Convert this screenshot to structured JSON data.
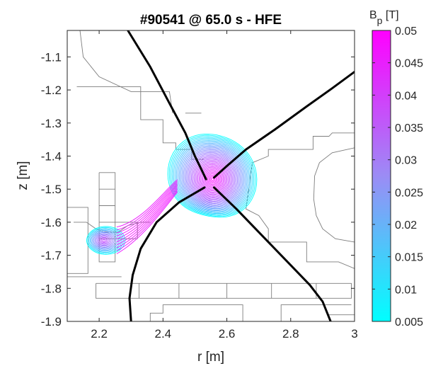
{
  "chart_data": {
    "type": "contour",
    "title": "#90541 @ 65.0 s - HFE",
    "xlabel": "r [m]",
    "ylabel": "z [m]",
    "xlim": [
      2.1,
      3.0
    ],
    "ylim": [
      -1.9,
      -1.02
    ],
    "x_ticks": [
      2.2,
      2.4,
      2.6,
      2.8,
      3
    ],
    "x_tick_labels": [
      "2.2",
      "2.4",
      "2.6",
      "2.8",
      "3"
    ],
    "y_ticks": [
      -1.1,
      -1.2,
      -1.3,
      -1.4,
      -1.5,
      -1.6,
      -1.7,
      -1.8,
      -1.9
    ],
    "y_tick_labels": [
      "-1.1",
      "-1.2",
      "-1.3",
      "-1.4",
      "-1.5",
      "-1.6",
      "-1.7",
      "-1.8",
      "-1.9"
    ],
    "colorbar": {
      "label_main": "B",
      "label_sub": "p",
      "label_unit": " [T]",
      "min": 0.005,
      "max": 0.05,
      "ticks": [
        0.05,
        0.045,
        0.04,
        0.035,
        0.03,
        0.025,
        0.02,
        0.015,
        0.01,
        0.005
      ],
      "tick_labels": [
        "0.05",
        "0.045",
        "0.04",
        "0.035",
        "0.03",
        "0.025",
        "0.02",
        "0.015",
        "0.01",
        "0.005"
      ],
      "color_low": "#00ffff",
      "color_high": "#ff00ff"
    },
    "null_point": [
      2.545,
      -1.478
    ],
    "main_region": {
      "center": [
        2.555,
        -1.47
      ],
      "rx": 0.125,
      "ry": 0.14
    },
    "secondary_region": {
      "center": [
        2.215,
        -1.655
      ],
      "rx": 0.06,
      "ry": 0.042
    },
    "separatrix": [
      {
        "name": "upper-left leg",
        "x": [
          2.29,
          2.36,
          2.42,
          2.47,
          2.5,
          2.52,
          2.535
        ],
        "y": [
          -1.02,
          -1.13,
          -1.24,
          -1.33,
          -1.4,
          -1.44,
          -1.47
        ]
      },
      {
        "name": "upper-right leg",
        "x": [
          2.56,
          2.6,
          2.66,
          2.75,
          2.85,
          2.93,
          3.0
        ],
        "y": [
          -1.465,
          -1.43,
          -1.38,
          -1.32,
          -1.25,
          -1.195,
          -1.145
        ]
      },
      {
        "name": "lower-left leg",
        "x": [
          2.53,
          2.45,
          2.38,
          2.33,
          2.305,
          2.295,
          2.3
        ],
        "y": [
          -1.495,
          -1.54,
          -1.6,
          -1.68,
          -1.76,
          -1.83,
          -1.9
        ]
      },
      {
        "name": "lower-right leg",
        "x": [
          2.56,
          2.63,
          2.71,
          2.79,
          2.86,
          2.9,
          2.925
        ],
        "y": [
          -1.495,
          -1.56,
          -1.64,
          -1.72,
          -1.79,
          -1.84,
          -1.9
        ]
      }
    ],
    "wall_outlines": [
      {
        "x": [
          2.1,
          2.14,
          2.15,
          2.2,
          2.3,
          2.42,
          2.43
        ],
        "y": [
          -1.02,
          -1.02,
          -1.1,
          -1.16,
          -1.205,
          -1.205,
          -1.27
        ]
      },
      {
        "x": [
          2.47,
          2.52
        ],
        "y": [
          -1.27,
          -1.27
        ]
      },
      {
        "x": [
          2.13,
          2.33,
          2.33,
          2.4,
          2.4,
          2.44,
          2.44,
          2.49,
          2.49,
          2.53
        ],
        "y": [
          -1.19,
          -1.19,
          -1.29,
          -1.29,
          -1.36,
          -1.36,
          -1.38,
          -1.38,
          -1.41,
          -1.41
        ]
      },
      {
        "x": [
          2.1,
          2.165,
          2.165,
          2.1
        ],
        "y": [
          -1.555,
          -1.555,
          -1.755,
          -1.755
        ]
      },
      {
        "x": [
          2.1,
          2.27
        ],
        "y": [
          -1.765,
          -1.765
        ]
      },
      {
        "x": [
          2.12,
          2.16,
          2.19,
          2.22,
          2.26,
          2.29,
          2.33,
          2.36
        ],
        "y": [
          -1.6,
          -1.6,
          -1.62,
          -1.63,
          -1.63,
          -1.61,
          -1.6,
          -1.6
        ]
      },
      {
        "x": [
          2.2,
          2.25,
          2.25,
          2.2,
          2.2
        ],
        "y": [
          -1.45,
          -1.45,
          -1.72,
          -1.72,
          -1.45
        ]
      },
      {
        "x": [
          2.2,
          2.25
        ],
        "y": [
          -1.5,
          -1.5
        ]
      },
      {
        "x": [
          2.2,
          2.25
        ],
        "y": [
          -1.55,
          -1.55
        ]
      },
      {
        "x": [
          2.2,
          2.25
        ],
        "y": [
          -1.6,
          -1.6
        ]
      },
      {
        "x": [
          2.2,
          2.25
        ],
        "y": [
          -1.65,
          -1.65
        ]
      },
      {
        "x": [
          2.25,
          2.32,
          2.32,
          2.25
        ],
        "y": [
          -1.6,
          -1.6,
          -1.65,
          -1.65
        ]
      },
      {
        "x": [
          2.19,
          2.99,
          2.99,
          2.19,
          2.19
        ],
        "y": [
          -1.785,
          -1.785,
          -1.83,
          -1.83,
          -1.785
        ]
      },
      {
        "x": [
          2.325,
          2.325
        ],
        "y": [
          -1.785,
          -1.83
        ]
      },
      {
        "x": [
          2.45,
          2.45
        ],
        "y": [
          -1.785,
          -1.83
        ]
      },
      {
        "x": [
          2.6,
          2.6
        ],
        "y": [
          -1.785,
          -1.83
        ]
      },
      {
        "x": [
          2.74,
          2.74
        ],
        "y": [
          -1.785,
          -1.83
        ]
      },
      {
        "x": [
          2.88,
          2.88
        ],
        "y": [
          -1.785,
          -1.83
        ]
      },
      {
        "x": [
          2.36,
          2.36,
          2.4,
          2.4,
          2.65,
          2.65
        ],
        "y": [
          -1.9,
          -1.875,
          -1.875,
          -1.85,
          -1.85,
          -1.9
        ]
      },
      {
        "x": [
          2.77,
          2.77,
          2.99
        ],
        "y": [
          -1.9,
          -1.85,
          -1.85
        ]
      },
      {
        "x": [
          2.92,
          2.94,
          3.0
        ],
        "y": [
          -1.88,
          -1.88,
          -1.88
        ]
      },
      {
        "x": [
          3.0,
          2.93,
          2.89,
          2.875,
          2.872,
          2.88,
          2.9,
          2.94,
          3.0
        ],
        "y": [
          -1.375,
          -1.39,
          -1.42,
          -1.46,
          -1.53,
          -1.58,
          -1.62,
          -1.65,
          -1.66
        ]
      },
      {
        "x": [
          3.0,
          2.93,
          2.92,
          2.87,
          2.87,
          2.73,
          2.73,
          2.68,
          2.66,
          2.7,
          2.73,
          2.73,
          2.85,
          2.85,
          2.95,
          3.0
        ],
        "y": [
          -1.33,
          -1.33,
          -1.34,
          -1.34,
          -1.38,
          -1.38,
          -1.4,
          -1.42,
          -1.56,
          -1.58,
          -1.62,
          -1.66,
          -1.66,
          -1.72,
          -1.72,
          -1.74
        ]
      }
    ]
  }
}
